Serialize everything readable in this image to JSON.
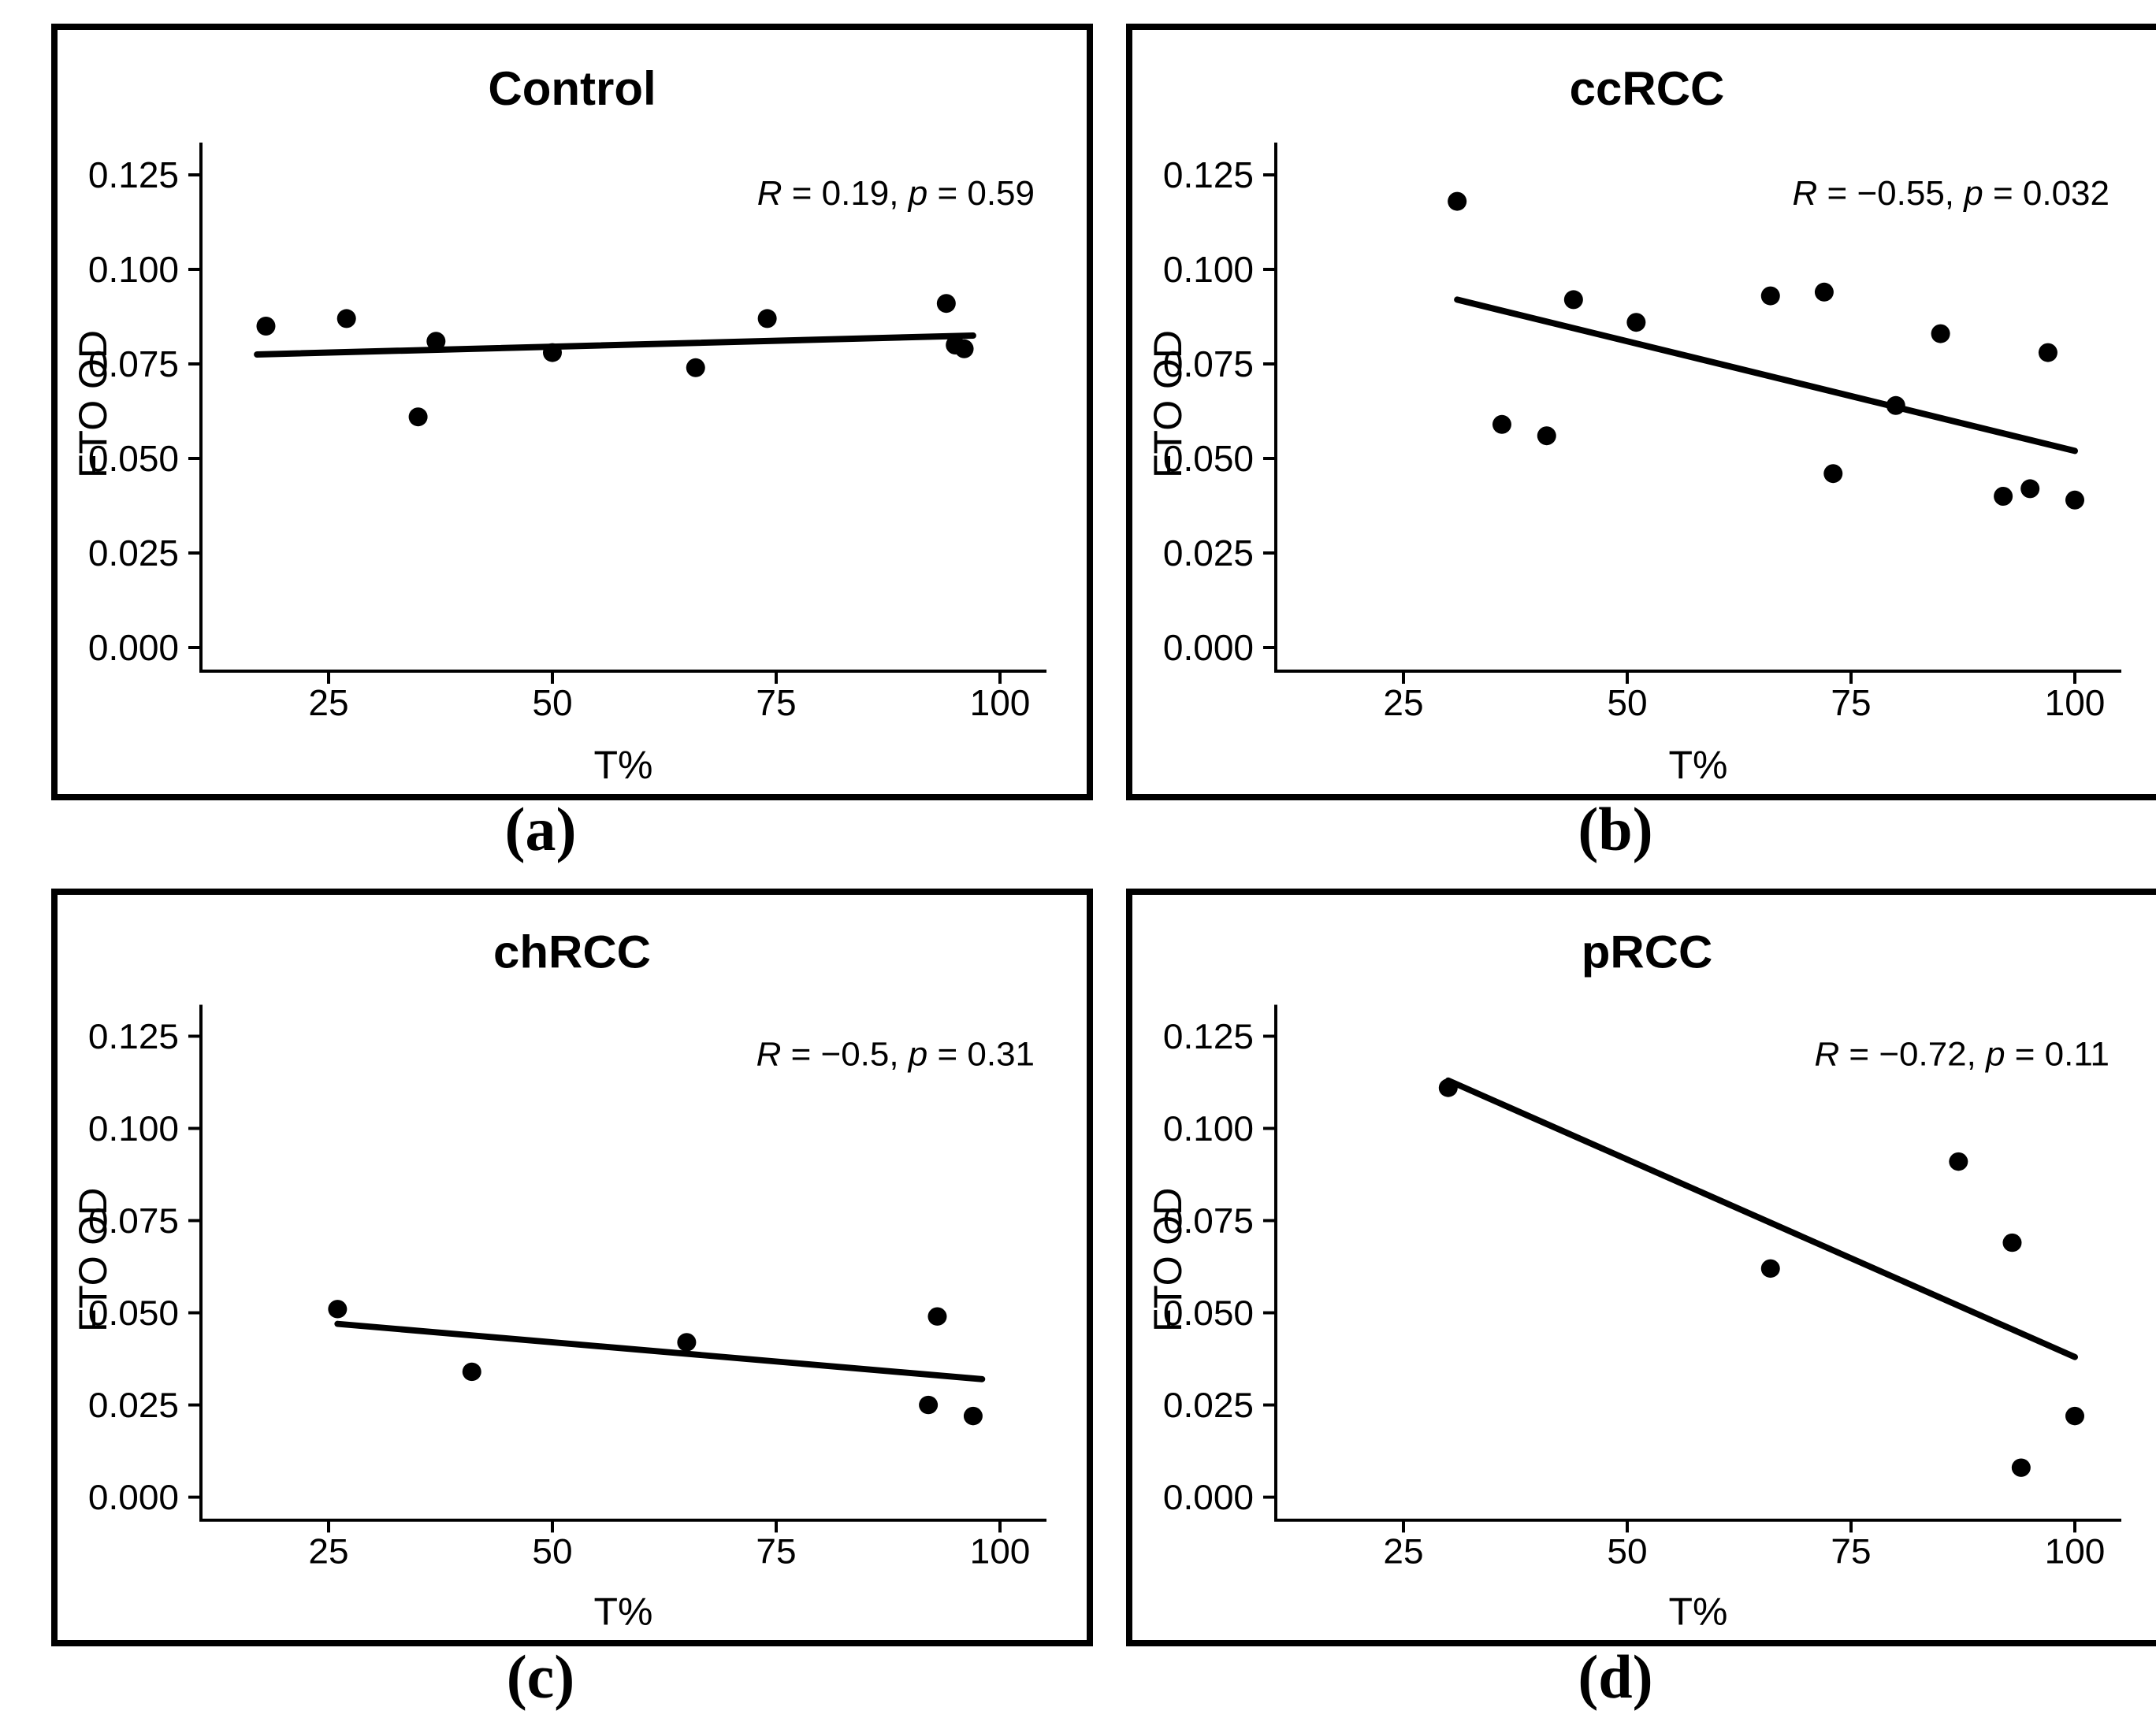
{
  "colors": {
    "ink": "#000000",
    "background": "#ffffff",
    "border": "#000000"
  },
  "chart_data": [
    {
      "type": "scatter",
      "panel": "a",
      "caption": "(a)",
      "title": "Control",
      "xlabel": "T%",
      "ylabel": "FTO OD",
      "x_ticks": [
        25,
        50,
        75,
        100
      ],
      "y_ticks": [
        "0.000",
        "0.025",
        "0.050",
        "0.075",
        "0.100",
        "0.125"
      ],
      "xlim": [
        10,
        105
      ],
      "ylim": [
        0,
        0.133
      ],
      "grid": false,
      "annotation": {
        "r_label": "R",
        "r_rest": " = 0.19, ",
        "p_label": "p",
        "p_rest": " = 0.59"
      },
      "points": [
        [
          18,
          0.085
        ],
        [
          27,
          0.087
        ],
        [
          35,
          0.061
        ],
        [
          37,
          0.081
        ],
        [
          50,
          0.078
        ],
        [
          66,
          0.074
        ],
        [
          74,
          0.087
        ],
        [
          94,
          0.091
        ],
        [
          95,
          0.08
        ],
        [
          96,
          0.079
        ]
      ],
      "trend": [
        [
          17,
          0.0775
        ],
        [
          97,
          0.0825
        ]
      ]
    },
    {
      "type": "scatter",
      "panel": "b",
      "caption": "(b)",
      "title": "ccRCC",
      "xlabel": "T%",
      "ylabel": "FTO OD",
      "x_ticks": [
        25,
        50,
        75,
        100
      ],
      "y_ticks": [
        "0.000",
        "0.025",
        "0.050",
        "0.075",
        "0.100",
        "0.125"
      ],
      "xlim": [
        10,
        105
      ],
      "ylim": [
        0,
        0.133
      ],
      "grid": false,
      "annotation": {
        "r_label": "R",
        "r_rest": " = −0.55, ",
        "p_label": "p",
        "p_rest": " = 0.032"
      },
      "points": [
        [
          31,
          0.118
        ],
        [
          36,
          0.059
        ],
        [
          41,
          0.056
        ],
        [
          44,
          0.092
        ],
        [
          51,
          0.086
        ],
        [
          66,
          0.093
        ],
        [
          72,
          0.094
        ],
        [
          73,
          0.046
        ],
        [
          80,
          0.064
        ],
        [
          85,
          0.083
        ],
        [
          92,
          0.04
        ],
        [
          95,
          0.042
        ],
        [
          97,
          0.078
        ],
        [
          100,
          0.039
        ]
      ],
      "trend": [
        [
          31,
          0.092
        ],
        [
          100,
          0.052
        ]
      ]
    },
    {
      "type": "scatter",
      "panel": "c",
      "caption": "(c)",
      "title": "chRCC",
      "xlabel": "T%",
      "ylabel": "FTO OD",
      "x_ticks": [
        25,
        50,
        75,
        100
      ],
      "y_ticks": [
        "0.000",
        "0.025",
        "0.050",
        "0.075",
        "0.100",
        "0.125"
      ],
      "xlim": [
        10,
        105
      ],
      "ylim": [
        0,
        0.133
      ],
      "grid": false,
      "annotation": {
        "r_label": "R",
        "r_rest": " = −0.5, ",
        "p_label": "p",
        "p_rest": " = 0.31"
      },
      "points": [
        [
          26,
          0.051
        ],
        [
          41,
          0.034
        ],
        [
          65,
          0.042
        ],
        [
          92,
          0.025
        ],
        [
          93,
          0.049
        ],
        [
          97,
          0.022
        ]
      ],
      "trend": [
        [
          26,
          0.047
        ],
        [
          98,
          0.032
        ]
      ]
    },
    {
      "type": "scatter",
      "panel": "d",
      "caption": "(d)",
      "title": "pRCC",
      "xlabel": "T%",
      "ylabel": "FTO OD",
      "x_ticks": [
        25,
        50,
        75,
        100
      ],
      "y_ticks": [
        "0.000",
        "0.025",
        "0.050",
        "0.075",
        "0.100",
        "0.125"
      ],
      "xlim": [
        10,
        105
      ],
      "ylim": [
        0,
        0.133
      ],
      "grid": false,
      "annotation": {
        "r_label": "R",
        "r_rest": " = −0.72, ",
        "p_label": "p",
        "p_rest": " = 0.11"
      },
      "points": [
        [
          30,
          0.111
        ],
        [
          66,
          0.062
        ],
        [
          87,
          0.091
        ],
        [
          93,
          0.069
        ],
        [
          94,
          0.008
        ],
        [
          100,
          0.022
        ]
      ],
      "trend": [
        [
          30,
          0.113
        ],
        [
          100,
          0.038
        ]
      ]
    }
  ]
}
